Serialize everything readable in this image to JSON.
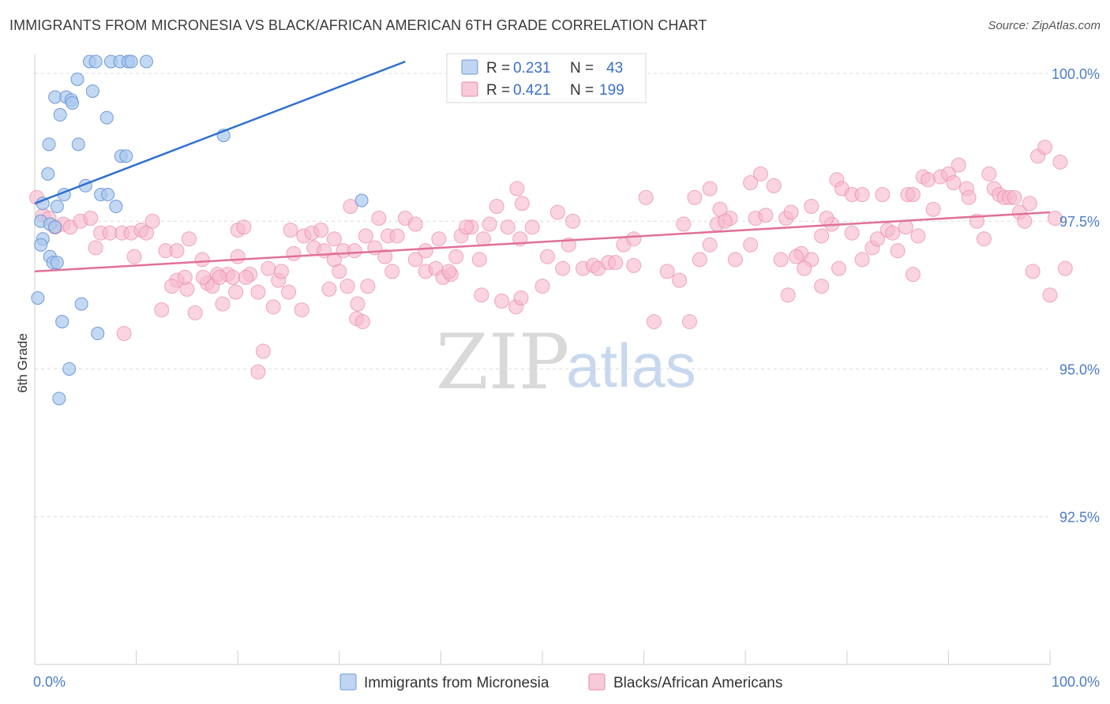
{
  "title": "IMMIGRANTS FROM MICRONESIA VS BLACK/AFRICAN AMERICAN 6TH GRADE CORRELATION CHART",
  "source": "Source: ZipAtlas.com",
  "watermark": {
    "zip": "ZIP",
    "atlas": "atlas"
  },
  "colors": {
    "blue": "#a9c7ee",
    "blue_edge": "#6f9ad6",
    "blue_line": "#2f6fcf",
    "pink": "#f6b8cc",
    "pink_edge": "#e889a8",
    "pink_line": "#e0709a"
  },
  "chart_data": {
    "type": "scatter",
    "xlabel": "",
    "ylabel": "6th Grade",
    "xlim": [
      0,
      100
    ],
    "ylim": [
      90.0,
      100.2
    ],
    "x_tick_labels": [
      "0.0%",
      "100.0%"
    ],
    "y_ticks": [
      92.5,
      95.0,
      97.5,
      100.0
    ],
    "y_tick_labels": [
      "92.5%",
      "95.0%",
      "97.5%",
      "100.0%"
    ],
    "grid": "horizontal dashed",
    "legend_position": "top-center",
    "legend": [
      {
        "r_label": "R =",
        "r_value": "0.231",
        "n_label": "N =",
        "n_value": "43"
      },
      {
        "r_label": "R =",
        "r_value": "0.421",
        "n_label": "N =",
        "n_value": "199"
      }
    ],
    "series": [
      {
        "name": "Immigrants from Micronesia",
        "trend": {
          "x": [
            0,
            36.5
          ],
          "y": [
            97.8,
            100.2
          ]
        },
        "points": [
          [
            5.4,
            100.2
          ],
          [
            6.0,
            100.2
          ],
          [
            7.5,
            100.2
          ],
          [
            8.4,
            100.2
          ],
          [
            9.2,
            100.2
          ],
          [
            9.5,
            100.2
          ],
          [
            11.0,
            100.2
          ],
          [
            4.2,
            99.9
          ],
          [
            5.7,
            99.7
          ],
          [
            2.0,
            99.6
          ],
          [
            3.1,
            99.6
          ],
          [
            3.6,
            99.55
          ],
          [
            3.7,
            99.5
          ],
          [
            2.5,
            99.3
          ],
          [
            7.1,
            99.25
          ],
          [
            1.4,
            98.8
          ],
          [
            4.3,
            98.8
          ],
          [
            8.5,
            98.6
          ],
          [
            9.0,
            98.6
          ],
          [
            18.6,
            98.95
          ],
          [
            1.3,
            98.3
          ],
          [
            5.0,
            98.1
          ],
          [
            2.9,
            97.95
          ],
          [
            6.5,
            97.95
          ],
          [
            7.2,
            97.95
          ],
          [
            0.8,
            97.8
          ],
          [
            2.2,
            97.75
          ],
          [
            8.0,
            97.75
          ],
          [
            32.2,
            97.85
          ],
          [
            0.6,
            97.5
          ],
          [
            1.5,
            97.45
          ],
          [
            2.0,
            97.4
          ],
          [
            0.8,
            97.2
          ],
          [
            0.6,
            97.1
          ],
          [
            1.5,
            96.9
          ],
          [
            1.8,
            96.8
          ],
          [
            2.2,
            96.8
          ],
          [
            0.3,
            96.2
          ],
          [
            4.6,
            96.1
          ],
          [
            2.7,
            95.8
          ],
          [
            6.2,
            95.6
          ],
          [
            3.4,
            95.0
          ],
          [
            2.4,
            94.5
          ]
        ]
      },
      {
        "name": "Blacks/African Americans",
        "trend": {
          "x": [
            0,
            100
          ],
          "y": [
            96.65,
            97.65
          ]
        },
        "points": [
          [
            0.2,
            97.9
          ],
          [
            0.8,
            97.6
          ],
          [
            1.4,
            97.55
          ],
          [
            2.0,
            97.4
          ],
          [
            2.8,
            97.45
          ],
          [
            3.5,
            97.4
          ],
          [
            4.5,
            97.5
          ],
          [
            5.5,
            97.55
          ],
          [
            6.5,
            97.3
          ],
          [
            7.4,
            97.3
          ],
          [
            8.6,
            97.3
          ],
          [
            9.5,
            97.3
          ],
          [
            10.5,
            97.35
          ],
          [
            11.0,
            97.3
          ],
          [
            11.6,
            97.5
          ],
          [
            6.0,
            97.05
          ],
          [
            9.8,
            96.9
          ],
          [
            12.9,
            97.0
          ],
          [
            14.0,
            97.0
          ],
          [
            15.2,
            97.2
          ],
          [
            16.5,
            96.85
          ],
          [
            17.0,
            96.45
          ],
          [
            18.0,
            96.6
          ],
          [
            19.0,
            96.6
          ],
          [
            19.5,
            96.55
          ],
          [
            20.0,
            96.9
          ],
          [
            21.2,
            96.6
          ],
          [
            22.0,
            96.3
          ],
          [
            23.0,
            96.7
          ],
          [
            24.0,
            96.5
          ],
          [
            8.8,
            95.6
          ],
          [
            12.5,
            96.0
          ],
          [
            14.0,
            96.5
          ],
          [
            15.0,
            96.35
          ],
          [
            15.8,
            95.95
          ],
          [
            17.5,
            96.4
          ],
          [
            18.5,
            96.1
          ],
          [
            19.8,
            96.3
          ],
          [
            23.5,
            96.05
          ],
          [
            25.0,
            96.3
          ],
          [
            26.3,
            96.0
          ],
          [
            22.5,
            95.3
          ],
          [
            22.0,
            94.95
          ],
          [
            13.5,
            96.4
          ],
          [
            14.8,
            96.55
          ],
          [
            16.6,
            96.55
          ],
          [
            18.2,
            96.55
          ],
          [
            20.8,
            96.55
          ],
          [
            24.3,
            96.65
          ],
          [
            25.5,
            96.95
          ],
          [
            26.5,
            97.25
          ],
          [
            27.5,
            97.05
          ],
          [
            28.5,
            97.0
          ],
          [
            29.5,
            96.85
          ],
          [
            30.0,
            96.65
          ],
          [
            20.0,
            97.35
          ],
          [
            20.6,
            97.4
          ],
          [
            25.2,
            97.35
          ],
          [
            27.3,
            97.3
          ],
          [
            28.2,
            97.35
          ],
          [
            29.5,
            97.2
          ],
          [
            30.4,
            97.0
          ],
          [
            31.5,
            97.0
          ],
          [
            32.6,
            97.25
          ],
          [
            33.5,
            97.05
          ],
          [
            34.5,
            96.9
          ],
          [
            35.2,
            96.65
          ],
          [
            29.0,
            96.35
          ],
          [
            30.8,
            96.4
          ],
          [
            31.7,
            95.85
          ],
          [
            32.3,
            95.8
          ],
          [
            32.8,
            96.4
          ],
          [
            31.8,
            96.1
          ],
          [
            31.1,
            97.75
          ],
          [
            33.9,
            97.55
          ],
          [
            34.8,
            97.25
          ],
          [
            35.7,
            97.25
          ],
          [
            36.5,
            97.55
          ],
          [
            37.5,
            96.85
          ],
          [
            38.5,
            96.65
          ],
          [
            39.5,
            96.7
          ],
          [
            40.2,
            96.55
          ],
          [
            41.0,
            96.6
          ],
          [
            42.0,
            97.25
          ],
          [
            43.0,
            97.4
          ],
          [
            44.2,
            97.2
          ],
          [
            37.5,
            97.45
          ],
          [
            38.5,
            97.0
          ],
          [
            39.8,
            97.2
          ],
          [
            40.8,
            96.65
          ],
          [
            41.5,
            96.9
          ],
          [
            42.5,
            97.4
          ],
          [
            43.8,
            96.85
          ],
          [
            44.8,
            97.45
          ],
          [
            45.5,
            97.75
          ],
          [
            46.6,
            97.4
          ],
          [
            47.8,
            97.2
          ],
          [
            44.0,
            96.25
          ],
          [
            46.0,
            96.15
          ],
          [
            47.4,
            96.05
          ],
          [
            47.9,
            96.2
          ],
          [
            50.0,
            96.4
          ],
          [
            47.5,
            98.05
          ],
          [
            48.0,
            97.8
          ],
          [
            49.0,
            97.4
          ],
          [
            50.5,
            96.9
          ],
          [
            51.5,
            97.65
          ],
          [
            52.0,
            96.7
          ],
          [
            52.6,
            97.1
          ],
          [
            53.0,
            97.5
          ],
          [
            54.0,
            96.7
          ],
          [
            55.0,
            96.75
          ],
          [
            55.5,
            96.7
          ],
          [
            56.5,
            96.8
          ],
          [
            57.2,
            96.8
          ],
          [
            58.0,
            97.1
          ],
          [
            59.0,
            97.2
          ],
          [
            60.2,
            97.9
          ],
          [
            59.0,
            96.75
          ],
          [
            61.0,
            95.8
          ],
          [
            62.3,
            96.65
          ],
          [
            63.5,
            96.5
          ],
          [
            64.5,
            95.8
          ],
          [
            63.9,
            97.45
          ],
          [
            65.5,
            96.85
          ],
          [
            66.5,
            97.1
          ],
          [
            67.2,
            97.45
          ],
          [
            68.5,
            97.55
          ],
          [
            69.0,
            96.85
          ],
          [
            70.5,
            97.1
          ],
          [
            71.0,
            97.55
          ],
          [
            72.0,
            97.6
          ],
          [
            73.5,
            96.85
          ],
          [
            74.2,
            96.25
          ],
          [
            65.0,
            97.9
          ],
          [
            66.5,
            98.05
          ],
          [
            67.5,
            97.7
          ],
          [
            68.0,
            97.5
          ],
          [
            70.5,
            98.15
          ],
          [
            71.5,
            98.3
          ],
          [
            72.8,
            98.1
          ],
          [
            74.0,
            97.55
          ],
          [
            74.5,
            97.65
          ],
          [
            75.5,
            96.95
          ],
          [
            76.5,
            96.85
          ],
          [
            77.5,
            96.4
          ],
          [
            78.5,
            97.45
          ],
          [
            75.0,
            96.9
          ],
          [
            75.8,
            96.7
          ],
          [
            76.5,
            97.75
          ],
          [
            77.5,
            97.25
          ],
          [
            78.0,
            97.55
          ],
          [
            79.2,
            96.7
          ],
          [
            80.5,
            97.3
          ],
          [
            81.5,
            96.85
          ],
          [
            82.5,
            97.05
          ],
          [
            83.0,
            97.2
          ],
          [
            84.0,
            97.35
          ],
          [
            85.0,
            97.0
          ],
          [
            85.8,
            97.4
          ],
          [
            86.5,
            96.6
          ],
          [
            87.0,
            97.25
          ],
          [
            79.0,
            98.2
          ],
          [
            79.5,
            98.05
          ],
          [
            80.5,
            97.95
          ],
          [
            81.5,
            97.95
          ],
          [
            83.5,
            97.95
          ],
          [
            84.5,
            97.3
          ],
          [
            86.0,
            97.95
          ],
          [
            86.5,
            97.95
          ],
          [
            87.5,
            98.25
          ],
          [
            88.0,
            98.2
          ],
          [
            88.5,
            97.7
          ],
          [
            89.2,
            98.25
          ],
          [
            90.0,
            98.3
          ],
          [
            90.5,
            98.15
          ],
          [
            91.0,
            98.45
          ],
          [
            91.8,
            98.05
          ],
          [
            92.0,
            97.9
          ],
          [
            92.8,
            97.5
          ],
          [
            93.5,
            97.2
          ],
          [
            94.0,
            98.3
          ],
          [
            94.5,
            98.05
          ],
          [
            95.0,
            97.95
          ],
          [
            95.5,
            97.9
          ],
          [
            96.0,
            97.9
          ],
          [
            96.5,
            97.9
          ],
          [
            97.0,
            97.65
          ],
          [
            97.5,
            97.5
          ],
          [
            98.0,
            97.8
          ],
          [
            98.3,
            96.65
          ],
          [
            98.8,
            98.6
          ],
          [
            99.5,
            98.75
          ],
          [
            100.0,
            96.25
          ],
          [
            100.5,
            97.55
          ],
          [
            101.0,
            98.5
          ],
          [
            101.5,
            96.7
          ]
        ]
      }
    ]
  }
}
